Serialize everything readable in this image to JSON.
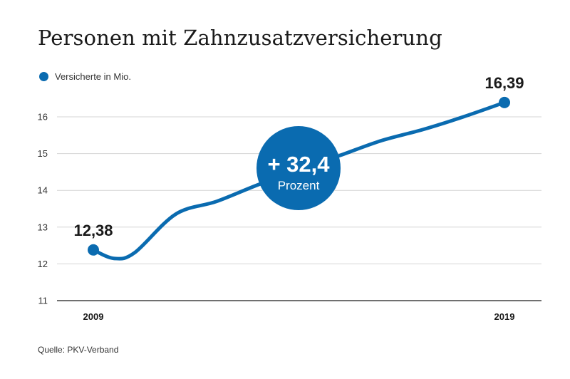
{
  "colors": {
    "series": "#0a6bb0",
    "grid": "#d4d4d4",
    "axis": "#1a1a1a"
  },
  "header": {
    "title": "Personen mit Zahnzusatzversicherung"
  },
  "legend": {
    "label": "Versicherte in Mio."
  },
  "footer": {
    "source": "Quelle: PKV-Verband"
  },
  "chart_data": {
    "type": "line",
    "title": "Personen mit Zahnzusatzversicherung",
    "xlabel": "",
    "ylabel": "",
    "xlim": [
      2009,
      2019
    ],
    "ylim": [
      11,
      16.5
    ],
    "yticks": [
      11,
      12,
      13,
      14,
      15,
      16
    ],
    "xticks": [
      "2009",
      "2019"
    ],
    "grid": true,
    "legend_position": "top-left",
    "series": [
      {
        "name": "Versicherte in Mio.",
        "x": [
          2009,
          2009.5,
          2010,
          2011,
          2012,
          2013,
          2014,
          2015,
          2016,
          2017,
          2018,
          2019
        ],
        "y": [
          12.38,
          12.15,
          12.3,
          13.35,
          13.7,
          14.15,
          14.55,
          14.95,
          15.35,
          15.65,
          16.0,
          16.39
        ]
      }
    ],
    "endpoints": [
      {
        "x": 2009,
        "y": 12.38,
        "label": "12,38"
      },
      {
        "x": 2019,
        "y": 16.39,
        "label": "16,39"
      }
    ],
    "annotation": {
      "value": "+ 32,4",
      "unit": "Prozent"
    }
  }
}
